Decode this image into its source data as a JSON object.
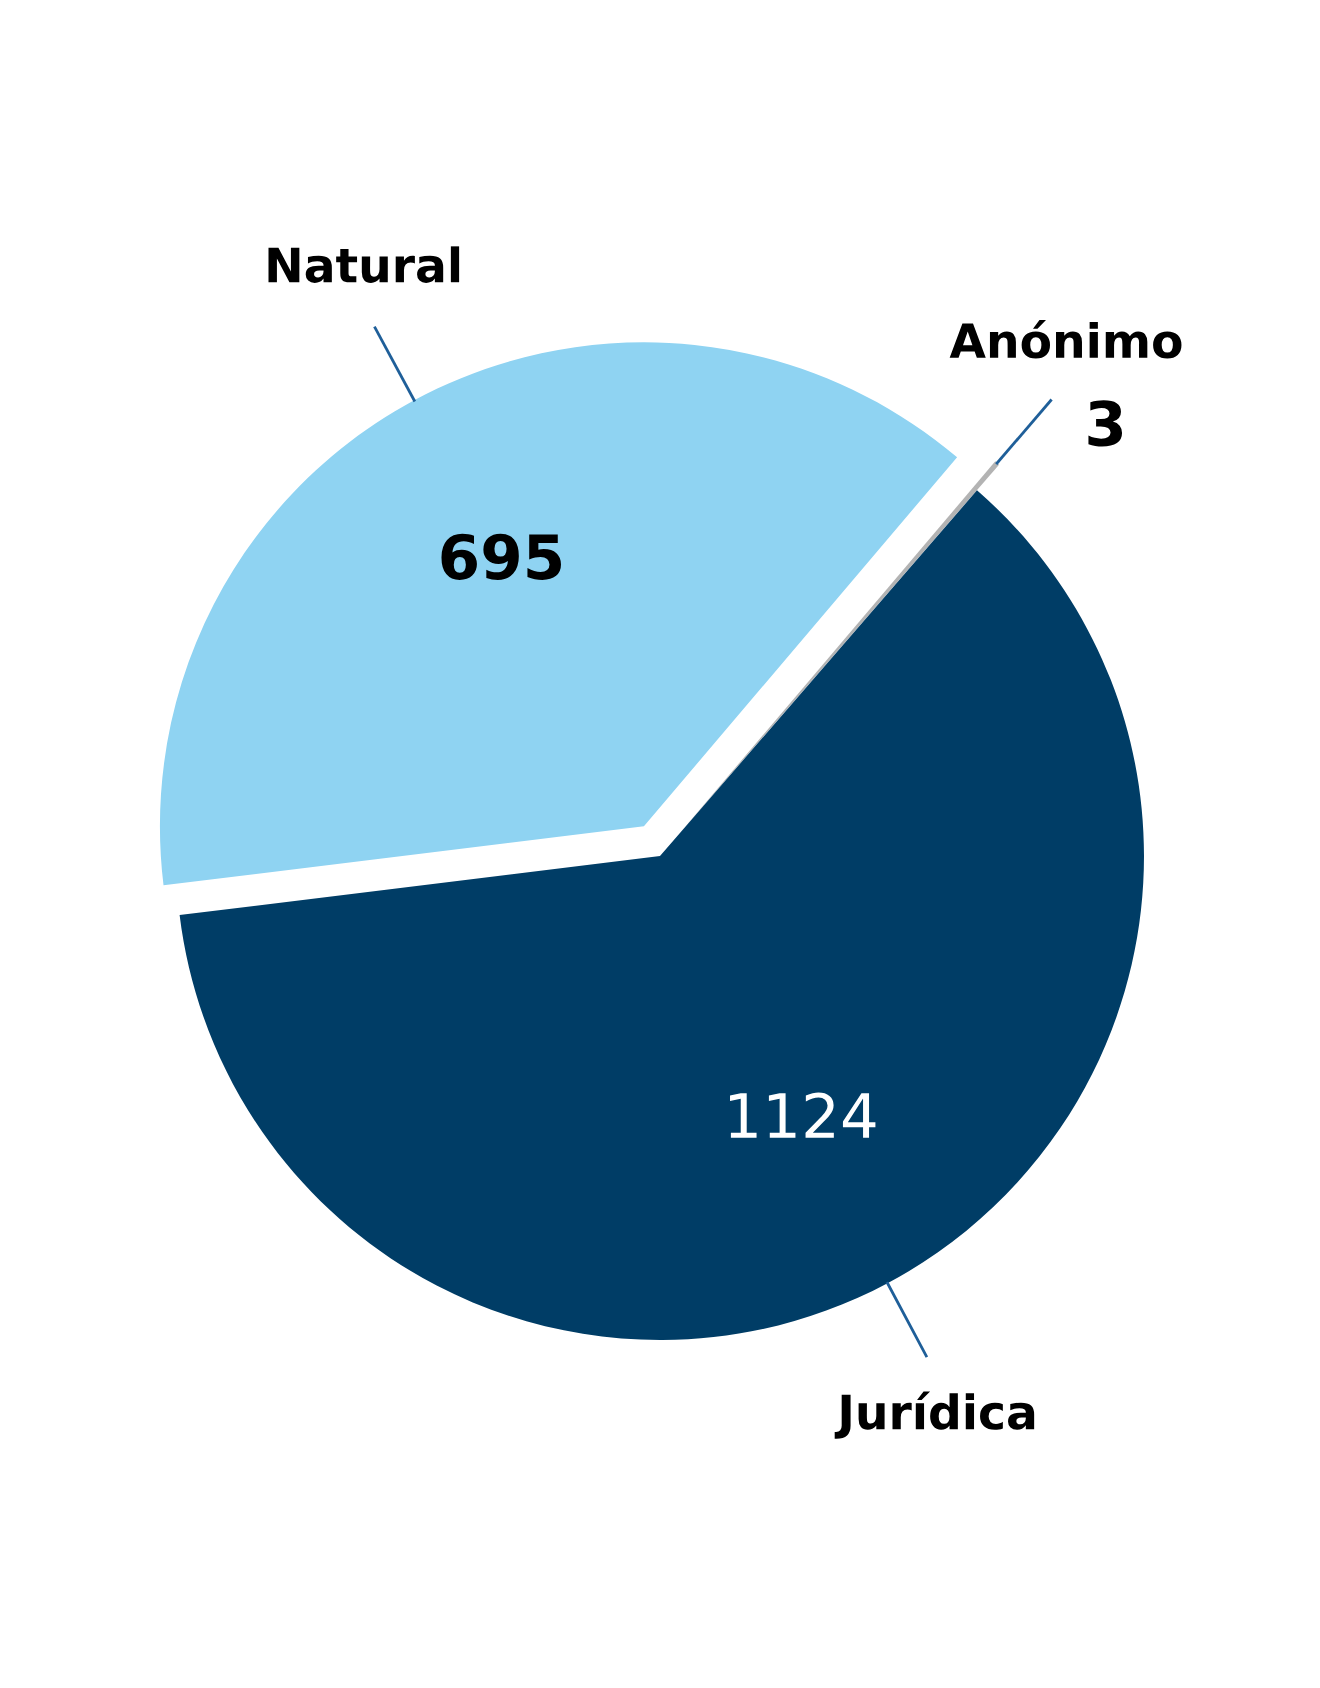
{
  "chart_data": {
    "type": "pie",
    "categories": [
      "Natural",
      "Anónimo",
      "Jurídica"
    ],
    "values": [
      695,
      3,
      1124
    ],
    "colors": [
      "#8fd3f2",
      "#b3b3b3",
      "#003d66"
    ],
    "data_labels": true,
    "legend": false
  }
}
